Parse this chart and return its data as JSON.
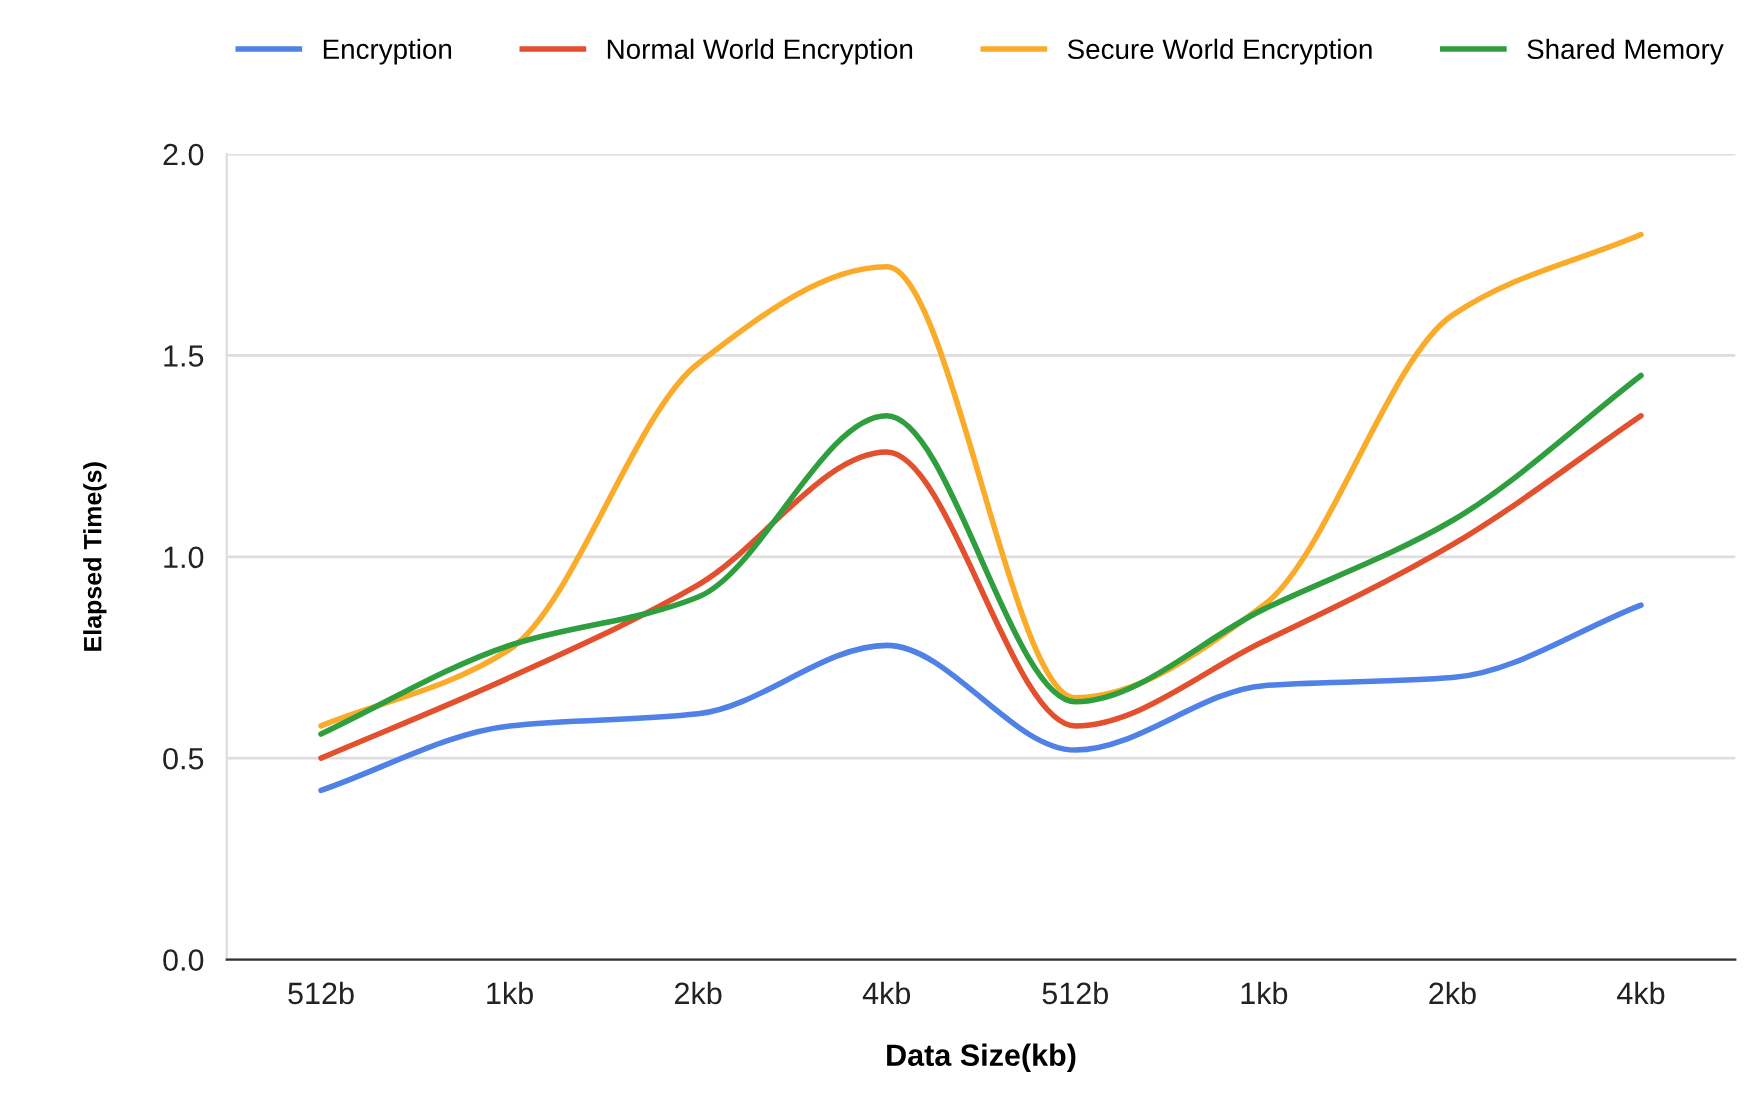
{
  "chart_data": {
    "type": "line",
    "xlabel": "Data Size(kb)",
    "ylabel": "Elapsed Time(s)",
    "categories": [
      "512b",
      "1kb",
      "2kb",
      "4kb",
      "512b",
      "1kb",
      "2kb",
      "4kb"
    ],
    "series": [
      {
        "name": "Encryption",
        "color": "#4f81e6",
        "values": [
          0.42,
          0.58,
          0.61,
          0.78,
          0.52,
          0.68,
          0.7,
          0.88
        ]
      },
      {
        "name": "Normal World Encryption",
        "color": "#e2502e",
        "values": [
          0.5,
          0.7,
          0.93,
          1.26,
          0.58,
          0.79,
          1.03,
          1.35
        ]
      },
      {
        "name": "Secure World Encryption",
        "color": "#fbab2a",
        "values": [
          0.58,
          0.77,
          1.48,
          1.72,
          0.65,
          0.88,
          1.6,
          1.8
        ]
      },
      {
        "name": "Shared Memory",
        "color": "#2f9e3f",
        "values": [
          0.56,
          0.78,
          0.9,
          1.35,
          0.64,
          0.87,
          1.09,
          1.45
        ]
      }
    ],
    "ylim": [
      0,
      2.0
    ],
    "yticks": [
      {
        "value": 0,
        "label": "0.0"
      },
      {
        "value": 0.5,
        "label": "0.5"
      },
      {
        "value": 1,
        "label": "1.0"
      },
      {
        "value": 1.5,
        "label": "1.5"
      },
      {
        "value": 2,
        "label": "2.0"
      }
    ],
    "grid": "y",
    "legend": "top",
    "marker": "none",
    "line_style": "solid"
  }
}
